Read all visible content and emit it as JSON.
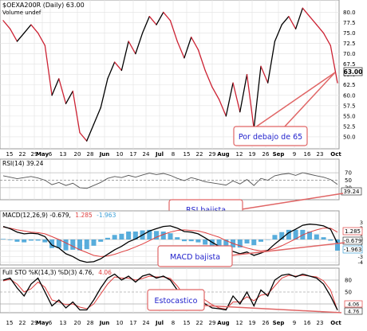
{
  "main": {
    "title": "$OEXA200R (Daily) 63.00",
    "volume_label": "Volume undef",
    "price_tag": "63.00",
    "annotation": "Por debajo de 65",
    "y_ticks": [
      "80.0",
      "77.5",
      "75.0",
      "72.5",
      "70.0",
      "67.5",
      "65.0",
      "62.5",
      "60.0",
      "57.5",
      "55.0",
      "52.5",
      "50.0"
    ]
  },
  "date_axis": {
    "labels": [
      "15",
      "22",
      "29",
      "May",
      "6",
      "13",
      "20",
      "28",
      "Jun",
      "10",
      "17",
      "24",
      "Jul",
      "8",
      "15",
      "22",
      "29",
      "Aug",
      "12",
      "19",
      "26",
      "Sep",
      "9",
      "16",
      "23",
      "Oct"
    ]
  },
  "rsi": {
    "title": "RSI(14) 39.24",
    "y_ticks": [
      "70",
      "50",
      "30"
    ],
    "value_tag": "39.24",
    "annotation": "RSI bajista"
  },
  "macd": {
    "title_prefix": "MACD(12,26,9) -0.679,",
    "title_signal": "1.285",
    "title_hist": "-1.963",
    "y_ticks": [
      "3",
      "2",
      "1",
      "0",
      "-1",
      "-2",
      "-3",
      "-4"
    ],
    "tags": [
      "1.285",
      "-0.679",
      "-1.963"
    ],
    "annotation": "MACD bajista"
  },
  "sto": {
    "title_prefix": "Full STO %K(14,3) %D(3) 4.76,",
    "title_d": "4.06",
    "y_ticks": [
      "80",
      "50",
      "20"
    ],
    "tags": [
      "4.06",
      "4.76"
    ],
    "annotation": "Estocastico"
  },
  "colors": {
    "up": "#000000",
    "down": "#cc2233",
    "macd_signal": "#e04040",
    "histogram": "#3b9fd6",
    "annotation_fill": "#ffffff",
    "annotation_text": "#2222cc",
    "annotation_border": "#e06666",
    "grid": "#d8d8d8"
  },
  "chart_data": [
    {
      "type": "line",
      "title": "$OEXA200R (Daily) 63.00",
      "ylim": [
        47.5,
        82
      ],
      "x": [
        "Apr 15",
        "Apr 19",
        "Apr 24",
        "Apr 29",
        "May 3",
        "May 6",
        "May 9",
        "May 13",
        "May 16",
        "May 20",
        "May 23",
        "May 28",
        "May 31",
        "Jun 4",
        "Jun 7",
        "Jun 10",
        "Jun 13",
        "Jun 17",
        "Jun 20",
        "Jun 24",
        "Jun 27",
        "Jul 1",
        "Jul 5",
        "Jul 8",
        "Jul 11",
        "Jul 15",
        "Jul 18",
        "Jul 22",
        "Jul 25",
        "Jul 29",
        "Aug 2",
        "Aug 5",
        "Aug 8",
        "Aug 12",
        "Aug 15",
        "Aug 19",
        "Aug 22",
        "Aug 26",
        "Aug 29",
        "Sep 3",
        "Sep 6",
        "Sep 9",
        "Sep 12",
        "Sep 16",
        "Sep 19",
        "Sep 23",
        "Sep 26",
        "Sep 30",
        "Oct 2"
      ],
      "series": [
        {
          "values": [
            78,
            76,
            73,
            75,
            77,
            75,
            72,
            60,
            64,
            58,
            61,
            51,
            49,
            53,
            57,
            64,
            68,
            66,
            73,
            70,
            75,
            79,
            77,
            80,
            78,
            73,
            69,
            74,
            71,
            66,
            62,
            59,
            55,
            63,
            56,
            65,
            52,
            67,
            63,
            73,
            77,
            79,
            76,
            81,
            79,
            77,
            75,
            72,
            63
          ]
        }
      ]
    },
    {
      "type": "line",
      "title": "RSI(14) 39.24",
      "ylim": [
        0,
        100
      ],
      "series": [
        {
          "values": [
            62,
            58,
            54,
            57,
            60,
            56,
            50,
            38,
            44,
            36,
            42,
            30,
            28,
            36,
            44,
            55,
            60,
            57,
            63,
            58,
            64,
            69,
            65,
            68,
            63,
            55,
            49,
            57,
            52,
            46,
            43,
            40,
            37,
            48,
            40,
            52,
            36,
            55,
            50,
            62,
            66,
            68,
            63,
            70,
            66,
            62,
            58,
            52,
            39
          ]
        }
      ]
    },
    {
      "type": "line",
      "title": "MACD(12,26,9) -0.679, 1.285, -1.963",
      "ylim": [
        -4,
        3.5
      ],
      "series": [
        {
          "name": "MACD",
          "values": [
            2.3,
            1.9,
            1.3,
            1.0,
            1.1,
            1.0,
            0.5,
            -1.0,
            -1.5,
            -2.5,
            -3.0,
            -3.7,
            -4.0,
            -3.9,
            -3.4,
            -2.6,
            -1.8,
            -1.2,
            -0.4,
            0.1,
            0.8,
            1.5,
            1.9,
            2.3,
            2.4,
            2.0,
            1.4,
            1.3,
            1.0,
            0.3,
            -0.5,
            -1.2,
            -2.0,
            -2.1,
            -2.5,
            -2.2,
            -2.8,
            -2.4,
            -1.9,
            -0.8,
            0.2,
            1.2,
            1.8,
            2.5,
            2.7,
            2.6,
            2.4,
            1.8,
            -0.68
          ]
        },
        {
          "name": "Signal",
          "values": [
            2.2,
            2.0,
            1.7,
            1.5,
            1.3,
            1.2,
            1.0,
            0.5,
            0.0,
            -0.6,
            -1.2,
            -1.8,
            -2.3,
            -2.8,
            -3.0,
            -2.9,
            -2.6,
            -2.2,
            -1.8,
            -1.3,
            -0.8,
            -0.2,
            0.4,
            0.9,
            1.3,
            1.6,
            1.7,
            1.6,
            1.5,
            1.2,
            0.8,
            0.4,
            -0.2,
            -0.7,
            -1.1,
            -1.5,
            -1.8,
            -2.0,
            -1.9,
            -1.6,
            -1.1,
            -0.5,
            0.1,
            0.8,
            1.3,
            1.7,
            2.0,
            2.0,
            1.29
          ]
        },
        {
          "name": "Histogram",
          "values": [
            0.1,
            -0.1,
            -0.4,
            -0.5,
            -0.2,
            -0.2,
            -0.5,
            -1.5,
            -1.5,
            -1.9,
            -1.8,
            -1.9,
            -1.7,
            -1.1,
            -0.4,
            0.3,
            0.8,
            1.0,
            1.4,
            1.4,
            1.6,
            1.7,
            1.5,
            1.4,
            1.1,
            0.4,
            -0.3,
            -0.3,
            -0.5,
            -0.9,
            -1.3,
            -1.6,
            -1.8,
            -1.4,
            -1.4,
            -0.7,
            -1.0,
            -0.4,
            0.0,
            0.8,
            1.3,
            1.7,
            1.7,
            1.7,
            1.4,
            0.9,
            0.4,
            -0.2,
            -1.96
          ]
        }
      ]
    },
    {
      "type": "line",
      "title": "Full STO %K(14,3) %D(3) 4.76, 4.06",
      "ylim": [
        0,
        100
      ],
      "series": [
        {
          "name": "%K",
          "values": [
            80,
            85,
            60,
            40,
            70,
            85,
            50,
            15,
            30,
            10,
            25,
            5,
            5,
            30,
            60,
            85,
            95,
            80,
            90,
            75,
            90,
            95,
            85,
            90,
            80,
            55,
            30,
            55,
            40,
            20,
            10,
            8,
            5,
            40,
            20,
            50,
            15,
            55,
            40,
            80,
            92,
            95,
            88,
            95,
            90,
            85,
            70,
            40,
            4.76
          ]
        },
        {
          "name": "%D",
          "values": [
            78,
            82,
            70,
            50,
            58,
            75,
            62,
            30,
            25,
            18,
            20,
            12,
            8,
            20,
            45,
            70,
            88,
            85,
            85,
            80,
            84,
            90,
            88,
            88,
            84,
            65,
            42,
            45,
            42,
            30,
            18,
            10,
            7,
            25,
            25,
            38,
            28,
            42,
            45,
            65,
            85,
            92,
            90,
            92,
            90,
            88,
            78,
            55,
            4.06
          ]
        }
      ]
    }
  ]
}
